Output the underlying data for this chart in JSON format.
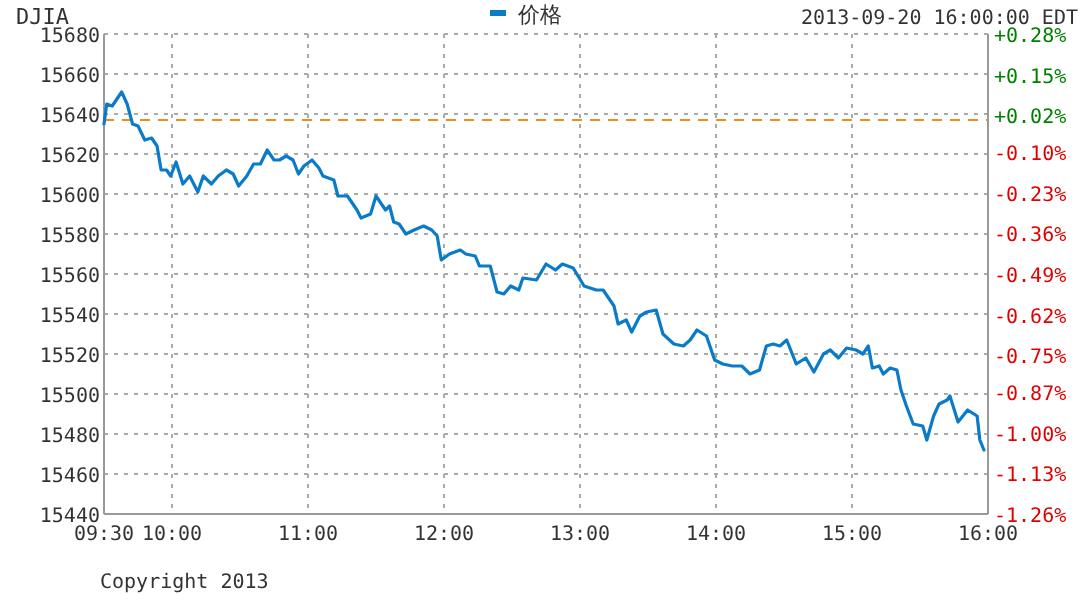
{
  "chart_data": {
    "type": "line",
    "title": "DJIA",
    "annotations": [
      "2013-09-20 16:00:00 EDT",
      "Copyright 2013"
    ],
    "x": [
      9.5,
      9.52,
      9.56,
      9.59,
      9.63,
      9.67,
      9.71,
      9.75,
      9.8,
      9.85,
      9.89,
      9.92,
      9.96,
      9.99,
      10.03,
      10.08,
      10.13,
      10.19,
      10.23,
      10.29,
      10.34,
      10.4,
      10.45,
      10.49,
      10.55,
      10.6,
      10.65,
      10.7,
      10.75,
      10.79,
      10.84,
      10.89,
      10.93,
      10.97,
      11.03,
      11.08,
      11.11,
      11.19,
      11.22,
      11.29,
      11.36,
      11.39,
      11.46,
      11.5,
      11.57,
      11.6,
      11.63,
      11.67,
      11.72,
      11.78,
      11.85,
      11.91,
      11.95,
      11.98,
      12.04,
      12.12,
      12.16,
      12.23,
      12.26,
      12.34,
      12.39,
      12.44,
      12.49,
      12.55,
      12.58,
      12.68,
      12.75,
      12.82,
      12.87,
      12.95,
      13.03,
      13.12,
      13.17,
      13.25,
      13.28,
      13.34,
      13.38,
      13.44,
      13.49,
      13.56,
      13.61,
      13.69,
      13.76,
      13.81,
      13.86,
      13.93,
      13.99,
      14.05,
      14.12,
      14.19,
      14.25,
      14.32,
      14.37,
      14.42,
      14.47,
      14.52,
      14.59,
      14.66,
      14.72,
      14.79,
      14.84,
      14.9,
      14.96,
      15.03,
      15.08,
      15.12,
      15.15,
      15.2,
      15.23,
      15.28,
      15.33,
      15.36,
      15.4,
      15.45,
      15.52,
      15.55,
      15.6,
      15.64,
      15.7,
      15.72,
      15.78,
      15.85,
      15.92,
      15.94,
      15.97
    ],
    "series": [
      {
        "name": "价格",
        "color": "#0a7bc8",
        "values": [
          15635,
          15645,
          15644,
          15647,
          15651,
          15645,
          15635,
          15634,
          15627,
          15628,
          15624,
          15612,
          15612,
          15609,
          15616,
          15605,
          15609,
          15601,
          15609,
          15605,
          15609,
          15612,
          15610,
          15604,
          15609,
          15615,
          15615,
          15622,
          15617,
          15617,
          15619,
          15617,
          15610,
          15614,
          15617,
          15613,
          15609,
          15607,
          15599,
          15599,
          15592,
          15588,
          15590,
          15599,
          15592,
          15594,
          15586,
          15585,
          15580,
          15582,
          15584,
          15582,
          15579,
          15567,
          15570,
          15572,
          15570,
          15569,
          15564,
          15564,
          15551,
          15550,
          15554,
          15552,
          15558,
          15557,
          15565,
          15562,
          15565,
          15563,
          15554,
          15552,
          15552,
          15544,
          15535,
          15537,
          15531,
          15539,
          15541,
          15542,
          15530,
          15525,
          15524,
          15527,
          15532,
          15529,
          15517,
          15515,
          15514,
          15514,
          15510,
          15512,
          15524,
          15525,
          15524,
          15527,
          15515,
          15518,
          15511,
          15520,
          15522,
          15518,
          15523,
          15522,
          15520,
          15524,
          15513,
          15514,
          15510,
          15513,
          15512,
          15502,
          15494,
          15485,
          15484,
          15477,
          15489,
          15495,
          15497,
          15499,
          15486,
          15492,
          15489,
          15477,
          15472
        ]
      }
    ],
    "xlim": [
      9.5,
      16
    ],
    "xticks": [
      {
        "value": 9.5,
        "label": "09:30"
      },
      {
        "value": 10,
        "label": "10:00"
      },
      {
        "value": 11,
        "label": "11:00"
      },
      {
        "value": 12,
        "label": "12:00"
      },
      {
        "value": 13,
        "label": "13:00"
      },
      {
        "value": 14,
        "label": "14:00"
      },
      {
        "value": 15,
        "label": "15:00"
      },
      {
        "value": 16,
        "label": "16:00"
      }
    ],
    "ylim": [
      15440,
      15680
    ],
    "yticks": [
      15440,
      15460,
      15480,
      15500,
      15520,
      15540,
      15560,
      15580,
      15600,
      15620,
      15640,
      15660,
      15680
    ],
    "y2lim": [
      -1.26,
      0.28
    ],
    "y2ticks": [
      {
        "value": -1.26,
        "label": "-1.26%"
      },
      {
        "value": -1.13,
        "label": "-1.13%"
      },
      {
        "value": -1.0,
        "label": "-1.00%"
      },
      {
        "value": -0.87,
        "label": "-0.87%"
      },
      {
        "value": -0.75,
        "label": "-0.75%"
      },
      {
        "value": -0.62,
        "label": "-0.62%"
      },
      {
        "value": -0.49,
        "label": "-0.49%"
      },
      {
        "value": -0.36,
        "label": "-0.36%"
      },
      {
        "value": -0.23,
        "label": "-0.23%"
      },
      {
        "value": -0.1,
        "label": "-0.10%"
      },
      {
        "value": 0.02,
        "label": "+0.02%"
      },
      {
        "value": 0.15,
        "label": "+0.15%"
      },
      {
        "value": 0.28,
        "label": "+0.28%"
      }
    ],
    "ref_lines": [
      {
        "axis": "y",
        "value": 15637,
        "color": "#f08c1e",
        "line_style": "dashed"
      }
    ],
    "grid": true,
    "legend": "top"
  }
}
